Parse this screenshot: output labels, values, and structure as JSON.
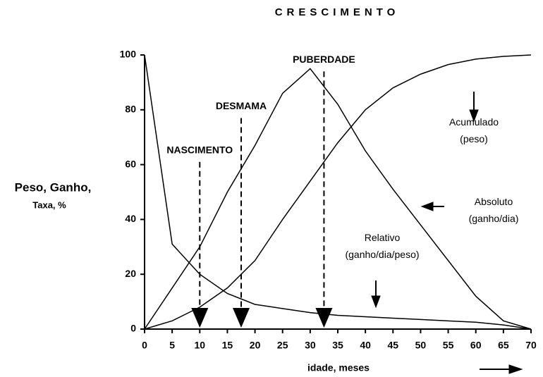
{
  "chart_data": {
    "type": "line",
    "title": "CRESCIMENTO",
    "y_label": "Peso, Ganho,",
    "y_label_sub": "Taxa, %",
    "x_label": "idade, meses",
    "x": [
      0,
      5,
      10,
      15,
      20,
      25,
      30,
      35,
      40,
      45,
      50,
      55,
      60,
      65,
      70
    ],
    "series": [
      {
        "name": "Acumulado (peso)",
        "color": "#000000",
        "values": [
          0,
          3,
          8,
          15,
          25,
          40,
          54,
          68,
          80,
          88,
          93,
          96.5,
          98.5,
          99.5,
          100
        ]
      },
      {
        "name": "Absoluto (ganho/dia)",
        "color": "#000000",
        "values": [
          0,
          15,
          30,
          50,
          67,
          86,
          95,
          82,
          65,
          51,
          38,
          25,
          12,
          3,
          0
        ]
      },
      {
        "name": "Relativo (ganho/dia/peso)",
        "color": "#000000",
        "values": [
          100,
          31,
          20,
          13,
          9,
          7.5,
          6,
          5,
          4.5,
          4,
          3.5,
          3,
          2.5,
          1.5,
          0
        ]
      }
    ],
    "annotations": [
      {
        "label": "NASCIMENTO",
        "x": 10,
        "y": 61
      },
      {
        "label": "DESMAMA",
        "x": 17.5,
        "y": 77
      },
      {
        "label": "PUBERDADE",
        "x": 32.5,
        "y": 94
      }
    ],
    "xlim": [
      0,
      70
    ],
    "xticks": [
      0,
      5,
      10,
      15,
      20,
      25,
      30,
      35,
      40,
      45,
      50,
      55,
      60,
      65,
      70
    ],
    "ylim": [
      0,
      100
    ],
    "yticks": [
      0,
      20,
      40,
      60,
      80,
      100
    ],
    "grid": false
  }
}
